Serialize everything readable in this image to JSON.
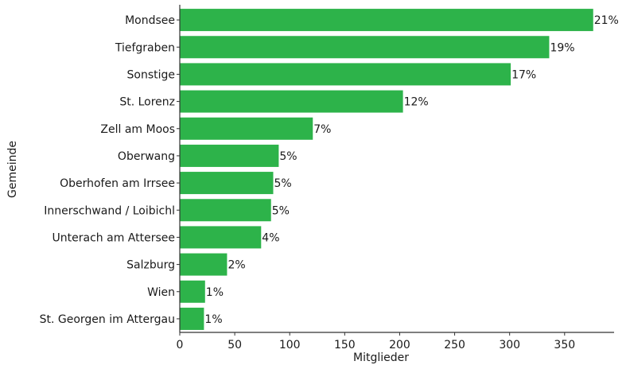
{
  "chart_data": {
    "type": "bar",
    "orientation": "horizontal",
    "categories": [
      "Mondsee",
      "Tiefgraben",
      "Sonstige",
      "St. Lorenz",
      "Zell am Moos",
      "Oberwang",
      "Oberhofen am Irrsee",
      "Innerschwand / Loibichl",
      "Unterach am Attersee",
      "Salzburg",
      "Wien",
      "St. Georgen im Attergau"
    ],
    "values": [
      376,
      336,
      301,
      203,
      121,
      90,
      85,
      83,
      74,
      43,
      23,
      22
    ],
    "data_labels": [
      "21%",
      "19%",
      "17%",
      "12%",
      "7%",
      "5%",
      "5%",
      "5%",
      "4%",
      "2%",
      "1%",
      "1%"
    ],
    "xlabel": "Mitglieder",
    "ylabel": "Gemeinde",
    "xlim": [
      0,
      395
    ],
    "xticks": [
      0,
      50,
      100,
      150,
      200,
      250,
      300,
      350
    ],
    "grid": false,
    "bar_color": "#2db34a",
    "axis_color": "#333333"
  }
}
